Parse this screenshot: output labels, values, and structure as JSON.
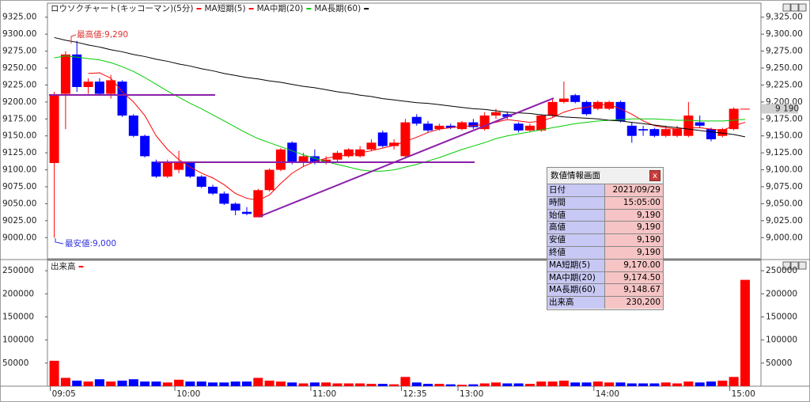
{
  "chart_data": [
    {
      "type": "candlestick",
      "title": "ロウソクチャート(キッコーマン)(5分)",
      "categories": [
        "09:05",
        null,
        null,
        null,
        null,
        null,
        null,
        null,
        null,
        null,
        null,
        "10:00",
        null,
        null,
        null,
        null,
        null,
        null,
        null,
        null,
        null,
        null,
        null,
        "11:00",
        null,
        null,
        null,
        null,
        null,
        null,
        null,
        "12:35",
        null,
        null,
        null,
        null,
        "13:00",
        null,
        null,
        null,
        null,
        null,
        null,
        null,
        null,
        null,
        null,
        null,
        "14:00",
        null,
        null,
        null,
        null,
        null,
        null,
        null,
        null,
        null,
        null,
        null,
        "15:00",
        null
      ],
      "open": [
        9110,
        9212,
        9270,
        9222,
        9230,
        9212,
        9230,
        9180,
        9150,
        9112,
        9090,
        9100,
        9110,
        9090,
        9075,
        9065,
        9050,
        9038,
        9030,
        9070,
        9100,
        9140,
        9110,
        9120,
        9110,
        9115,
        9120,
        9120,
        9130,
        9155,
        9135,
        9120,
        9178,
        9168,
        9160,
        9165,
        9160,
        9170,
        9160,
        9180,
        9182,
        9168,
        9158,
        9158,
        9180,
        9200,
        9210,
        9200,
        9190,
        9190,
        9200,
        9165,
        9160,
        9160,
        9150,
        9150,
        9150,
        9170,
        9160,
        9150,
        9160,
        9190
      ],
      "high": [
        9215,
        9275,
        9290,
        9235,
        9235,
        9240,
        9232,
        9182,
        9152,
        9115,
        9115,
        9128,
        9112,
        9092,
        9078,
        9068,
        9052,
        9045,
        9072,
        9102,
        9132,
        9142,
        9125,
        9130,
        9120,
        9128,
        9132,
        9135,
        9145,
        9158,
        9145,
        9175,
        9182,
        9172,
        9168,
        9168,
        9172,
        9175,
        9185,
        9190,
        9186,
        9170,
        9168,
        9182,
        9205,
        9230,
        9212,
        9202,
        9202,
        9202,
        9202,
        9170,
        9165,
        9162,
        9165,
        9165,
        9200,
        9180,
        9162,
        9162,
        9192,
        9190
      ],
      "low": [
        9000,
        9160,
        9215,
        9212,
        9210,
        9205,
        9178,
        9148,
        9118,
        9088,
        9088,
        9095,
        9088,
        9073,
        9063,
        9048,
        9033,
        9033,
        9030,
        9068,
        9098,
        9108,
        9105,
        9108,
        9108,
        9112,
        9118,
        9118,
        9128,
        9133,
        9130,
        9118,
        9165,
        9155,
        9158,
        9160,
        9158,
        9160,
        9158,
        9175,
        9175,
        9155,
        9156,
        9156,
        9178,
        9198,
        9198,
        9180,
        9188,
        9188,
        9170,
        9140,
        9150,
        9148,
        9148,
        9148,
        9148,
        9162,
        9142,
        9148,
        9158,
        9190
      ],
      "close": [
        9210,
        9270,
        9222,
        9230,
        9212,
        9232,
        9180,
        9150,
        9120,
        9090,
        9110,
        9110,
        9090,
        9075,
        9065,
        9050,
        9040,
        9035,
        9070,
        9100,
        9130,
        9110,
        9120,
        9110,
        9115,
        9125,
        9130,
        9130,
        9140,
        9135,
        9140,
        9170,
        9168,
        9158,
        9165,
        9162,
        9170,
        9163,
        9180,
        9185,
        9178,
        9158,
        9165,
        9180,
        9200,
        9205,
        9200,
        9182,
        9200,
        9200,
        9172,
        9150,
        9158,
        9150,
        9160,
        9160,
        9180,
        9165,
        9145,
        9160,
        9190,
        9190
      ],
      "up_color": "#ff0000",
      "down_color": "#0000ff",
      "series": [
        {
          "name": "MA短期(5)",
          "color": "#ff0000",
          "values": [
            null,
            null,
            null,
            9242,
            9243,
            9235,
            9215,
            9200,
            9180,
            9150,
            9130,
            9115,
            9104,
            9095,
            9088,
            9078,
            9065,
            9058,
            9055,
            9063,
            9080,
            9095,
            9105,
            9112,
            9117,
            9120,
            9122,
            9125,
            9128,
            9132,
            9136,
            9142,
            9148,
            9155,
            9160,
            9162,
            9164,
            9165,
            9167,
            9170,
            9174,
            9172,
            9170,
            9172,
            9177,
            9185,
            9190,
            9192,
            9196,
            9196,
            9190,
            9182,
            9172,
            9165,
            9162,
            9160,
            9162,
            9162,
            9160,
            9158,
            9165,
            9170
          ]
        },
        {
          "name": "MA中期(20)",
          "color": "#00cc00",
          "values": [
            9265,
            9268,
            9266,
            9264,
            9262,
            9258,
            9252,
            9245,
            9236,
            9226,
            9216,
            9207,
            9198,
            9190,
            9181,
            9172,
            9163,
            9154,
            9146,
            9140,
            9134,
            9128,
            9122,
            9117,
            9112,
            9108,
            9104,
            9100,
            9098,
            9098,
            9100,
            9104,
            9108,
            9113,
            9118,
            9124,
            9130,
            9135,
            9140,
            9146,
            9150,
            9153,
            9156,
            9159,
            9162,
            9165,
            9168,
            9170,
            9172,
            9173,
            9174,
            9175,
            9175,
            9175,
            9174,
            9173,
            9173,
            9172,
            9172,
            9172,
            9173,
            9174.5
          ]
        },
        {
          "name": "MA長期(60)",
          "color": "#000000",
          "values": [
            9295,
            9291,
            9288,
            9284,
            9281,
            9277,
            9274,
            9270,
            9267,
            9263,
            9260,
            9256,
            9253,
            9249,
            9246,
            9242,
            9239,
            9236,
            9234,
            9231,
            9229,
            9226,
            9223,
            9221,
            9218,
            9215,
            9213,
            9210,
            9208,
            9205,
            9203,
            9201,
            9199,
            9198,
            9196,
            9194,
            9192,
            9190,
            9189,
            9187,
            9185,
            9184,
            9183,
            9181,
            9180,
            9178,
            9177,
            9176,
            9175,
            9173,
            9172,
            9170,
            9168,
            9166,
            9164,
            9162,
            9160,
            9158,
            9156,
            9154,
            9152,
            9148.67
          ]
        }
      ],
      "ylim": [
        8970,
        9341
      ],
      "yticks": [
        {
          "value": 9000,
          "label": "9000.00"
        },
        {
          "value": 9025,
          "label": "9025.00"
        },
        {
          "value": 9050,
          "label": "9050.00"
        },
        {
          "value": 9075,
          "label": "9075.00"
        },
        {
          "value": 9100,
          "label": "9100.00"
        },
        {
          "value": 9125,
          "label": "9125.00"
        },
        {
          "value": 9150,
          "label": "9150.00"
        },
        {
          "value": 9175,
          "label": "9175.00"
        },
        {
          "value": 9200,
          "label": "9200.00"
        },
        {
          "value": 9225,
          "label": "9225.00"
        },
        {
          "value": 9250,
          "label": "9250.00"
        },
        {
          "value": 9275,
          "label": "9275.00"
        },
        {
          "value": 9300,
          "label": "9300.00"
        },
        {
          "value": 9325,
          "label": "9325.00"
        }
      ],
      "y2lim": [
        8970,
        9341
      ],
      "y2ticks": [
        {
          "value": 9000,
          "label": "9,000.00"
        },
        {
          "value": 9025,
          "label": "9,025.00"
        },
        {
          "value": 9050,
          "label": "9,050.00"
        },
        {
          "value": 9075,
          "label": "9,075.00"
        },
        {
          "value": 9100,
          "label": "9,100.00"
        },
        {
          "value": 9125,
          "label": "9,125.00"
        },
        {
          "value": 9150,
          "label": "9,150.00"
        },
        {
          "value": 9175,
          "label": "9,175.00"
        },
        {
          "value": 9200,
          "label": "9,200.00"
        },
        {
          "value": 9225,
          "label": "9,225.00"
        },
        {
          "value": 9250,
          "label": "9,250.00"
        },
        {
          "value": 9275,
          "label": "9,275.00"
        },
        {
          "value": 9300,
          "label": "9,300.00"
        },
        {
          "value": 9325,
          "label": "9,325.00"
        }
      ],
      "high_label": "最高値:9,290",
      "low_label": "最安値:9,000",
      "last_price_label": "9 190",
      "grid": false
    },
    {
      "type": "bar",
      "title": "出来高",
      "values": [
        55000,
        18000,
        12000,
        10000,
        15000,
        10000,
        12000,
        15000,
        10000,
        10000,
        8000,
        14000,
        10000,
        10000,
        8000,
        8000,
        10000,
        10000,
        18000,
        12000,
        10000,
        8000,
        6000,
        8000,
        8000,
        6000,
        6000,
        6000,
        5000,
        5000,
        4000,
        20000,
        8000,
        5000,
        5000,
        4000,
        3000,
        4000,
        6000,
        8000,
        6000,
        6000,
        5000,
        10000,
        10000,
        12000,
        8000,
        8000,
        10000,
        8000,
        8000,
        6000,
        6000,
        6000,
        8000,
        6000,
        10000,
        8000,
        10000,
        12000,
        20000,
        230200
      ],
      "ylim": [
        0,
        269000
      ],
      "yticks": [
        50000,
        100000,
        150000,
        200000,
        250000
      ],
      "grid": false
    }
  ],
  "info_panel": {
    "title": "数値情報画面",
    "close": "x",
    "rows": [
      [
        "日付",
        "2021/09/29"
      ],
      [
        "時間",
        "15:05:00"
      ],
      [
        "始値",
        "9,190"
      ],
      [
        "高値",
        "9,190"
      ],
      [
        "安値",
        "9,190"
      ],
      [
        "終値",
        "9,190"
      ],
      [
        "MA短期(5)",
        "9,170.00"
      ],
      [
        "MA中期(20)",
        "9,174.50"
      ],
      [
        "MA長期(60)",
        "9,148.67"
      ],
      [
        "出来高",
        "230,200"
      ]
    ]
  }
}
